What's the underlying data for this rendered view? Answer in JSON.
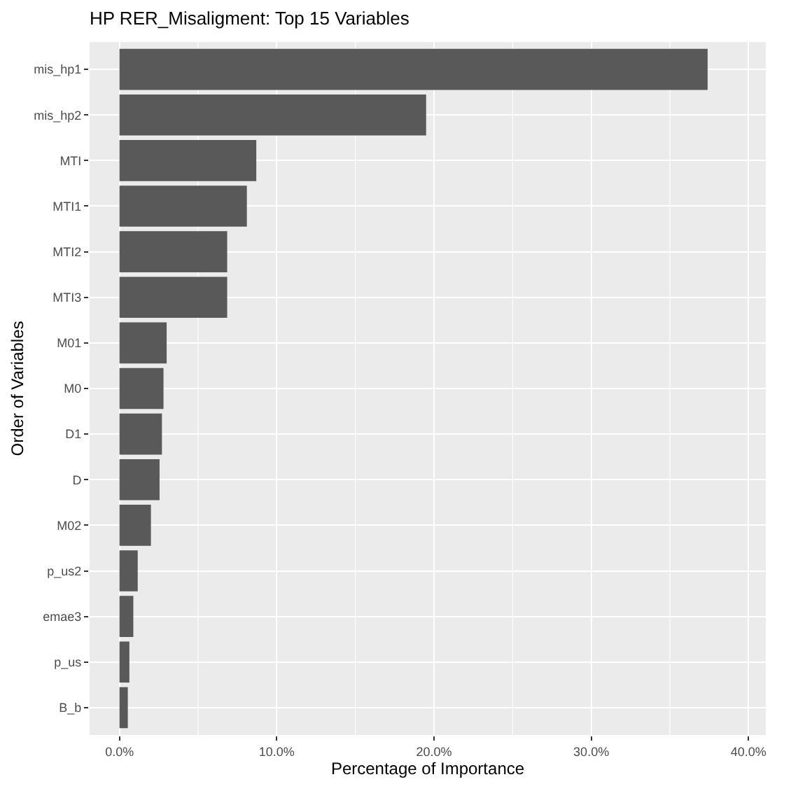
{
  "chart_data": {
    "type": "bar",
    "orientation": "horizontal",
    "title": "HP RER_Misaligment: Top 15 Variables",
    "xlabel": "Percentage of Importance",
    "ylabel": "Order of Variables",
    "categories": [
      "mis_hp1",
      "mis_hp2",
      "MTI",
      "MTI1",
      "MTI2",
      "MTI3",
      "M01",
      "M0",
      "D1",
      "D",
      "M02",
      "p_us2",
      "emae3",
      "p_us",
      "B_b"
    ],
    "values": [
      37.4,
      19.5,
      8.7,
      8.1,
      6.85,
      6.85,
      3.0,
      2.8,
      2.7,
      2.55,
      2.0,
      1.16,
      0.88,
      0.63,
      0.53
    ],
    "color": "#595959",
    "xlim": [
      -1.9,
      41.1
    ],
    "xticks": [
      {
        "value": 0,
        "label": "0.0%"
      },
      {
        "value": 5,
        "label": null
      },
      {
        "value": 10,
        "label": "10.0%"
      },
      {
        "value": 15,
        "label": null
      },
      {
        "value": 20,
        "label": "20.0%"
      },
      {
        "value": 25,
        "label": null
      },
      {
        "value": 30,
        "label": "30.0%"
      },
      {
        "value": 35,
        "label": null
      },
      {
        "value": 40,
        "label": "40.0%"
      }
    ],
    "grid": true
  }
}
